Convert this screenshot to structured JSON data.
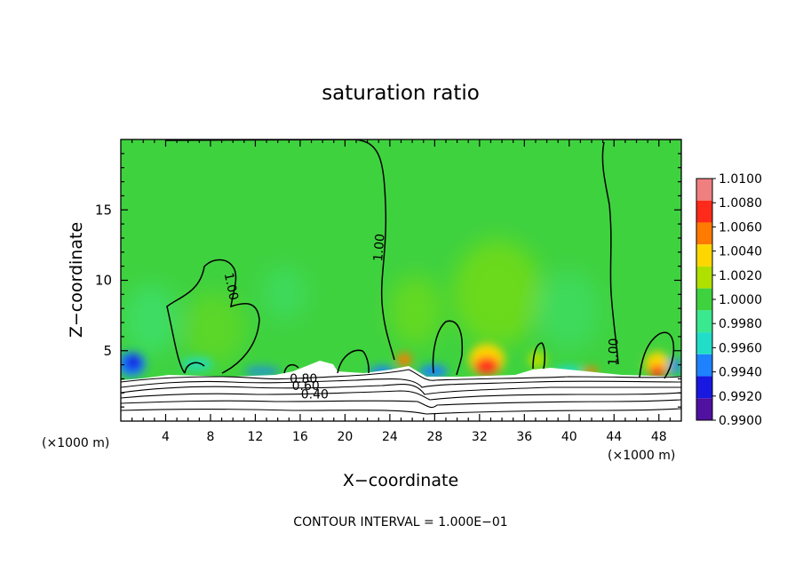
{
  "chart_data": {
    "type": "heatmap",
    "title": "saturation ratio",
    "xlabel": "X−coordinate",
    "ylabel": "Z−coordinate",
    "x_unit_left": "(×1000 m)",
    "x_unit_right": "(×1000 m)",
    "xlim": [
      0,
      50
    ],
    "ylim": [
      0,
      20
    ],
    "x_ticks": [
      "4",
      "8",
      "12",
      "16",
      "20",
      "24",
      "28",
      "32",
      "36",
      "40",
      "44",
      "48"
    ],
    "y_ticks": [
      "5",
      "10",
      "15"
    ],
    "footer": "CONTOUR INTERVAL = 1.000E−01",
    "contour_labels": [
      {
        "text": "1.00",
        "x": 23.4,
        "z": 12.3,
        "angle": -85
      },
      {
        "text": "1.00",
        "x": 9.5,
        "z": 9.5,
        "angle": 78
      },
      {
        "text": "1.00",
        "x": 44.3,
        "z": 4.9,
        "angle": -88
      },
      {
        "text": "0.80",
        "x": 16.3,
        "z": 2.7,
        "angle": 0
      },
      {
        "text": "0.60",
        "x": 16.5,
        "z": 2.2,
        "angle": 0
      },
      {
        "text": "0.40",
        "x": 17.3,
        "z": 1.6,
        "angle": 0
      }
    ],
    "colorbar": {
      "labels": [
        "1.0100",
        "1.0080",
        "1.0060",
        "1.0040",
        "1.0020",
        "1.0000",
        "0.9980",
        "0.9960",
        "0.9940",
        "0.9920",
        "0.9900"
      ],
      "colors": [
        "#f08080",
        "#ff2a1a",
        "#ff7a00",
        "#ffd700",
        "#b0e000",
        "#3fd23f",
        "#3ae890",
        "#22ddc8",
        "#1e82ff",
        "#1818e0",
        "#5010a0"
      ]
    },
    "field_base_color": "#3fd23f"
  }
}
